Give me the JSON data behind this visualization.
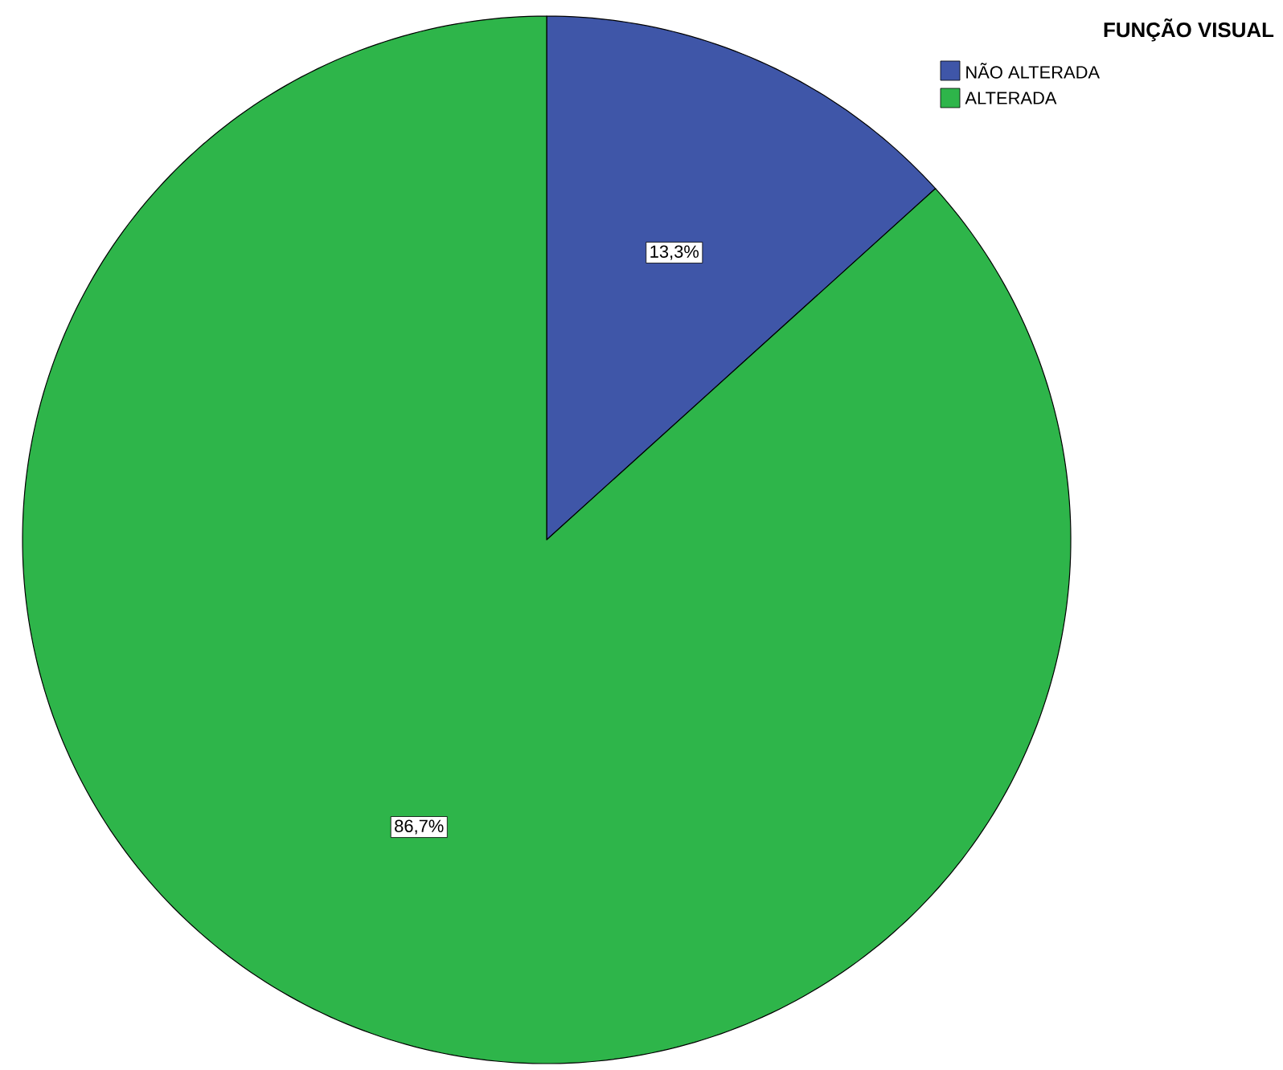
{
  "chart_data": {
    "type": "pie",
    "legend_title": "FUNÇÃO VISUAL",
    "legend": "top right",
    "categories": [
      "NÃO ALTERADA",
      "ALTERADA"
    ],
    "values": [
      13.3,
      86.7
    ],
    "value_labels": [
      "13,3%",
      "86,7%"
    ],
    "colors": [
      "#3f56a8",
      "#2eb54a"
    ]
  }
}
